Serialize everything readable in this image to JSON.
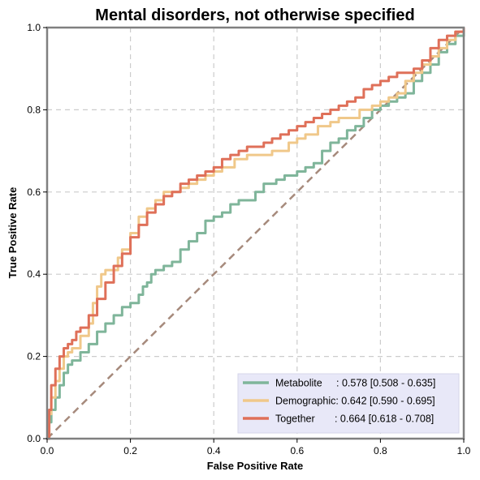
{
  "chart_data": {
    "type": "line",
    "title": "Mental disorders, not otherwise specified",
    "xlabel": "False Positive Rate",
    "ylabel": "True Positive Rate",
    "xlim": [
      0,
      1
    ],
    "ylim": [
      0,
      1
    ],
    "xticks": [
      "0.0",
      "0.2",
      "0.4",
      "0.6",
      "0.8",
      "1.0"
    ],
    "yticks": [
      "0.0",
      "0.2",
      "0.4",
      "0.6",
      "0.8",
      "1.0"
    ],
    "grid": true,
    "legend_position": "bottom-right",
    "chance_line": {
      "x": [
        0,
        1
      ],
      "y": [
        0,
        1
      ],
      "color": "#a68a7c"
    },
    "series": [
      {
        "name": "Metabolite",
        "legend_label": "Metabolite     : 0.578 [0.508 - 0.635]",
        "color": "#7fb59a",
        "x": [
          0,
          0.005,
          0.01,
          0.02,
          0.03,
          0.04,
          0.05,
          0.06,
          0.08,
          0.1,
          0.12,
          0.14,
          0.16,
          0.18,
          0.2,
          0.22,
          0.23,
          0.24,
          0.25,
          0.26,
          0.28,
          0.3,
          0.32,
          0.34,
          0.36,
          0.38,
          0.4,
          0.42,
          0.44,
          0.46,
          0.48,
          0.5,
          0.52,
          0.55,
          0.57,
          0.6,
          0.62,
          0.64,
          0.66,
          0.68,
          0.7,
          0.72,
          0.74,
          0.76,
          0.78,
          0.8,
          0.82,
          0.84,
          0.86,
          0.88,
          0.9,
          0.92,
          0.94,
          0.96,
          0.98,
          1.0
        ],
        "y": [
          0,
          0.04,
          0.07,
          0.1,
          0.13,
          0.16,
          0.18,
          0.19,
          0.21,
          0.23,
          0.26,
          0.28,
          0.3,
          0.32,
          0.33,
          0.35,
          0.37,
          0.38,
          0.4,
          0.41,
          0.42,
          0.43,
          0.46,
          0.48,
          0.5,
          0.53,
          0.54,
          0.55,
          0.57,
          0.58,
          0.58,
          0.6,
          0.62,
          0.63,
          0.64,
          0.65,
          0.66,
          0.67,
          0.7,
          0.72,
          0.73,
          0.75,
          0.76,
          0.78,
          0.8,
          0.81,
          0.82,
          0.83,
          0.84,
          0.87,
          0.89,
          0.91,
          0.94,
          0.96,
          0.98,
          1.0
        ]
      },
      {
        "name": "Demographic",
        "legend_label": "Demographic: 0.642 [0.590 - 0.695]",
        "color": "#f0c88a",
        "x": [
          0,
          0.005,
          0.01,
          0.02,
          0.03,
          0.04,
          0.05,
          0.06,
          0.08,
          0.1,
          0.11,
          0.12,
          0.13,
          0.14,
          0.15,
          0.17,
          0.18,
          0.2,
          0.22,
          0.24,
          0.26,
          0.28,
          0.3,
          0.32,
          0.34,
          0.36,
          0.38,
          0.4,
          0.42,
          0.45,
          0.48,
          0.5,
          0.52,
          0.54,
          0.56,
          0.58,
          0.6,
          0.62,
          0.65,
          0.68,
          0.7,
          0.72,
          0.75,
          0.78,
          0.8,
          0.82,
          0.84,
          0.86,
          0.88,
          0.9,
          0.92,
          0.94,
          0.96,
          0.98,
          1.0
        ],
        "y": [
          0,
          0.06,
          0.1,
          0.14,
          0.17,
          0.2,
          0.21,
          0.22,
          0.25,
          0.28,
          0.33,
          0.37,
          0.4,
          0.41,
          0.41,
          0.44,
          0.46,
          0.5,
          0.54,
          0.56,
          0.58,
          0.6,
          0.6,
          0.61,
          0.62,
          0.63,
          0.64,
          0.65,
          0.66,
          0.68,
          0.69,
          0.69,
          0.69,
          0.7,
          0.7,
          0.72,
          0.73,
          0.74,
          0.76,
          0.77,
          0.78,
          0.78,
          0.8,
          0.81,
          0.82,
          0.83,
          0.84,
          0.87,
          0.89,
          0.91,
          0.93,
          0.95,
          0.97,
          0.99,
          1.0
        ]
      },
      {
        "name": "Together",
        "legend_label": "Together       : 0.664 [0.618 - 0.708]",
        "color": "#df7059",
        "x": [
          0,
          0.005,
          0.01,
          0.02,
          0.03,
          0.04,
          0.05,
          0.06,
          0.07,
          0.08,
          0.1,
          0.12,
          0.14,
          0.16,
          0.18,
          0.2,
          0.22,
          0.24,
          0.26,
          0.28,
          0.3,
          0.32,
          0.34,
          0.36,
          0.38,
          0.4,
          0.42,
          0.44,
          0.46,
          0.48,
          0.5,
          0.52,
          0.54,
          0.56,
          0.58,
          0.6,
          0.62,
          0.64,
          0.66,
          0.68,
          0.7,
          0.72,
          0.74,
          0.76,
          0.78,
          0.8,
          0.82,
          0.84,
          0.86,
          0.88,
          0.9,
          0.92,
          0.94,
          0.96,
          0.98,
          1.0
        ],
        "y": [
          0,
          0.07,
          0.13,
          0.17,
          0.2,
          0.22,
          0.23,
          0.24,
          0.26,
          0.27,
          0.3,
          0.34,
          0.38,
          0.42,
          0.45,
          0.49,
          0.52,
          0.55,
          0.57,
          0.59,
          0.6,
          0.62,
          0.63,
          0.64,
          0.65,
          0.66,
          0.68,
          0.69,
          0.7,
          0.71,
          0.71,
          0.72,
          0.73,
          0.74,
          0.75,
          0.76,
          0.77,
          0.78,
          0.79,
          0.8,
          0.81,
          0.82,
          0.83,
          0.85,
          0.86,
          0.87,
          0.88,
          0.89,
          0.89,
          0.9,
          0.92,
          0.95,
          0.97,
          0.98,
          0.99,
          1.0
        ]
      }
    ]
  }
}
